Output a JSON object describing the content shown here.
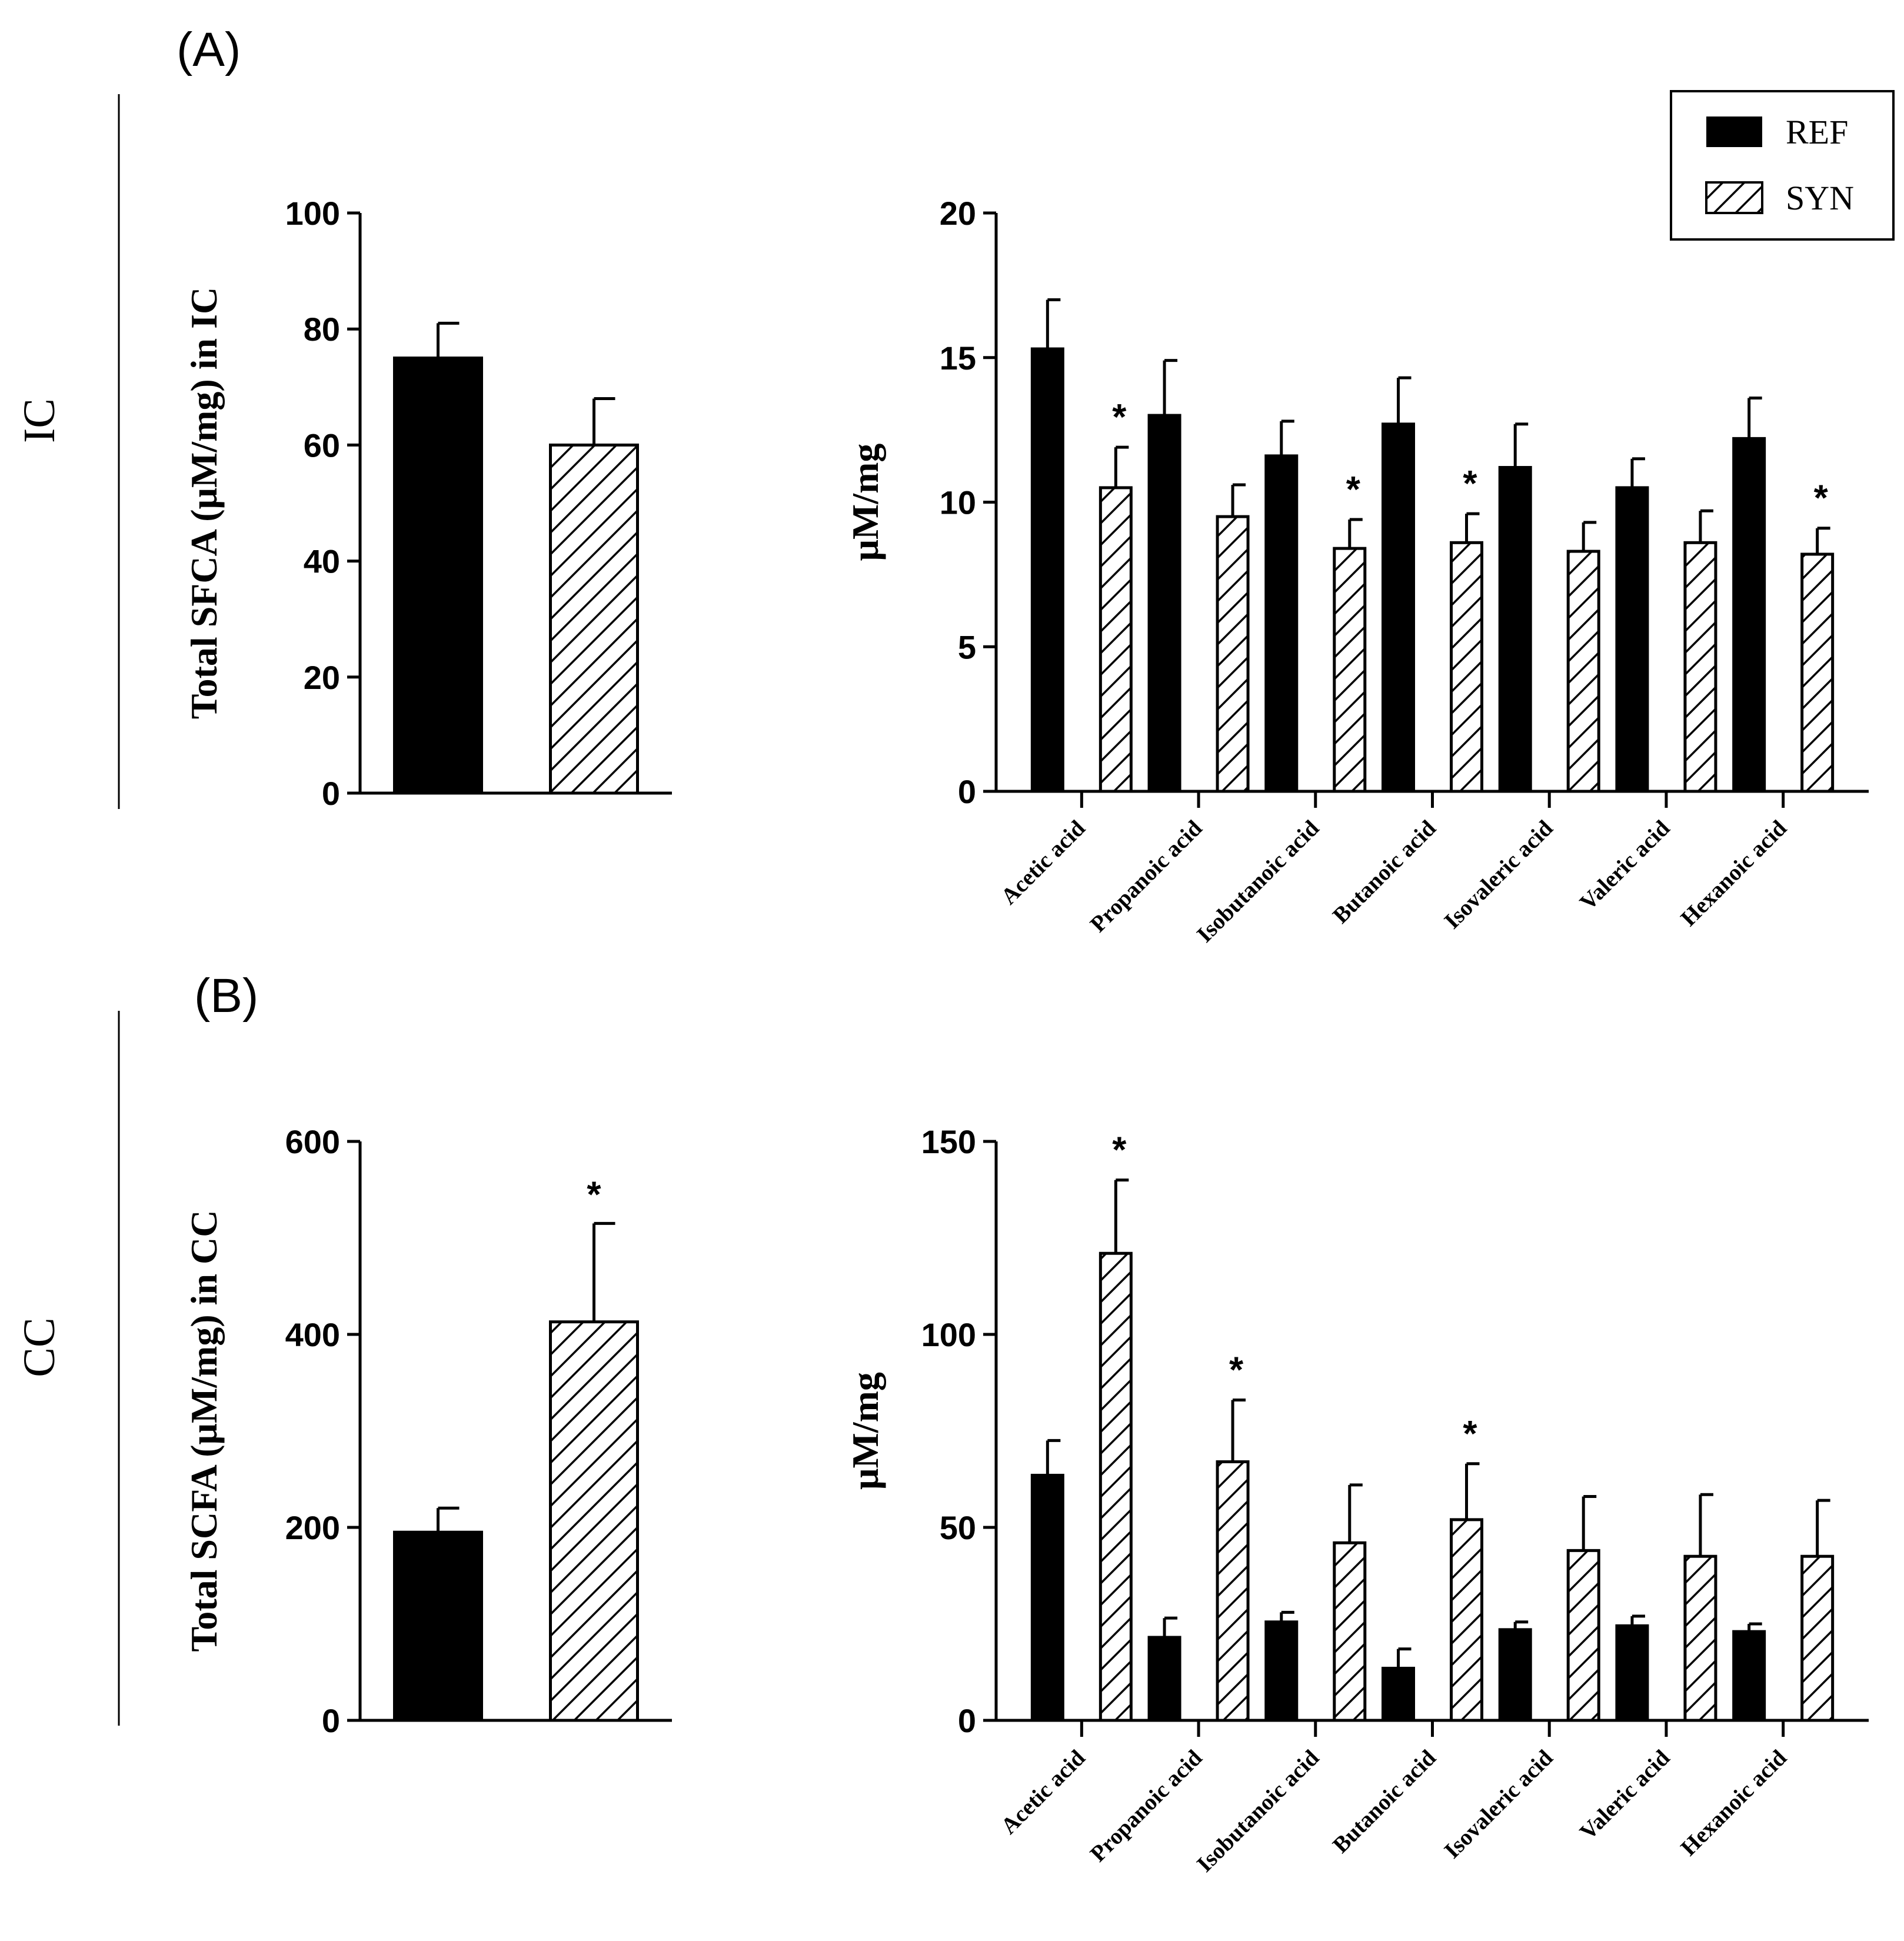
{
  "colors": {
    "ref": "#000000",
    "syn_stroke": "#000000",
    "background": "#ffffff"
  },
  "panels": {
    "A": {
      "label": "(A)",
      "row_label": "IC"
    },
    "B": {
      "label": "(B)",
      "row_label": "CC"
    }
  },
  "legend": {
    "items": [
      {
        "name": "REF",
        "style": "solid"
      },
      {
        "name": "SYN",
        "style": "hatched"
      }
    ]
  },
  "chart_data": [
    {
      "id": "ic_total",
      "type": "bar",
      "ylabel": "Total SFCA (μM/mg) in IC",
      "ylim": [
        0,
        100
      ],
      "yticks": [
        0,
        20,
        40,
        60,
        80,
        100
      ],
      "categories": [
        "REF",
        "SYN"
      ],
      "values": [
        75,
        60
      ],
      "errors": [
        6,
        8
      ],
      "significant": [
        false,
        false
      ]
    },
    {
      "id": "ic_acids",
      "type": "bar",
      "ylabel": "μM/mg",
      "ylim": [
        0,
        20
      ],
      "yticks": [
        0,
        5,
        10,
        15,
        20
      ],
      "categories": [
        "Acetic acid",
        "Propanoic acid",
        "Isobutanoic acid",
        "Butanoic acid",
        "Isovaleric acid",
        "Valeric acid",
        "Hexanoic acid"
      ],
      "series": [
        {
          "name": "REF",
          "values": [
            15.3,
            13.0,
            11.6,
            12.7,
            11.2,
            10.5,
            12.2
          ],
          "errors": [
            1.7,
            1.9,
            1.2,
            1.6,
            1.5,
            1.0,
            1.4
          ],
          "significant": [
            false,
            false,
            false,
            false,
            false,
            false,
            false
          ]
        },
        {
          "name": "SYN",
          "values": [
            10.5,
            9.5,
            8.4,
            8.6,
            8.3,
            8.6,
            8.2
          ],
          "errors": [
            1.4,
            1.1,
            1.0,
            1.0,
            1.0,
            1.1,
            0.9
          ],
          "significant": [
            true,
            false,
            true,
            true,
            false,
            false,
            true
          ]
        }
      ],
      "significance_marker": "*"
    },
    {
      "id": "cc_total",
      "type": "bar",
      "ylabel": "Total SCFA (μM/mg) in CC",
      "ylim": [
        0,
        600
      ],
      "yticks": [
        0,
        200,
        400,
        600
      ],
      "categories": [
        "REF",
        "SYN"
      ],
      "values": [
        195,
        413
      ],
      "errors": [
        25,
        102
      ],
      "significant": [
        false,
        true
      ],
      "significance_marker": "*"
    },
    {
      "id": "cc_acids",
      "type": "bar",
      "ylabel": "μM/mg",
      "ylim": [
        0,
        150
      ],
      "yticks": [
        0,
        50,
        100,
        150
      ],
      "categories": [
        "Acetic acid",
        "Propanoic acid",
        "Isobutanoic acid",
        "Butanoic acid",
        "Isovaleric acid",
        "Valeric acid",
        "Hexanoic acid"
      ],
      "series": [
        {
          "name": "REF",
          "values": [
            63.5,
            21.5,
            25.5,
            13.5,
            23.5,
            24.5,
            23.0
          ],
          "errors": [
            9,
            5,
            2.5,
            5,
            2,
            2.5,
            2
          ],
          "significant": [
            false,
            false,
            false,
            false,
            false,
            false,
            false
          ]
        },
        {
          "name": "SYN",
          "values": [
            121,
            67,
            46,
            52,
            44,
            42.5,
            42.5
          ],
          "errors": [
            19,
            16,
            15,
            14.5,
            14,
            16,
            14.5
          ],
          "significant": [
            true,
            true,
            false,
            true,
            false,
            false,
            false
          ]
        }
      ],
      "significance_marker": "*"
    }
  ]
}
